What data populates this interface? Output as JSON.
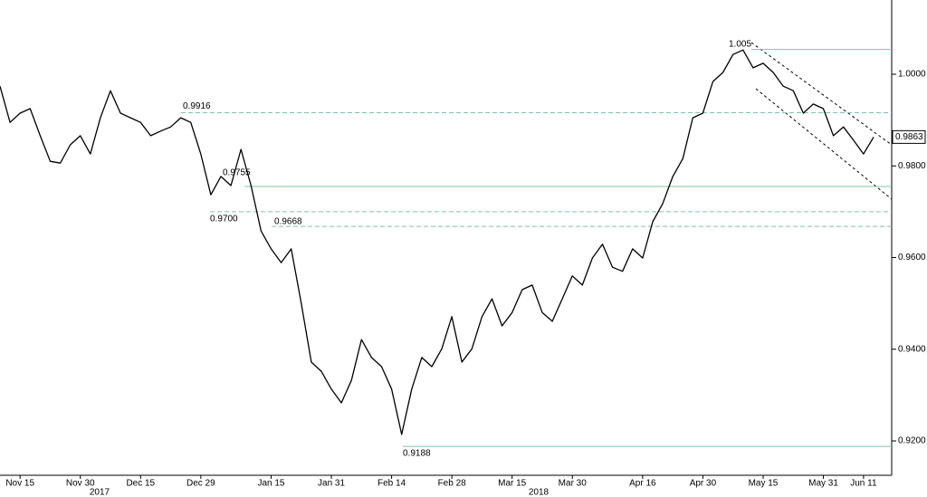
{
  "chart_data": {
    "type": "line",
    "categories": [
      null,
      null,
      "Nov 15",
      null,
      null,
      null,
      null,
      null,
      "Nov 30",
      null,
      null,
      null,
      null,
      null,
      "Dec 15",
      null,
      null,
      null,
      null,
      null,
      "Dec 29",
      null,
      null,
      null,
      null,
      null,
      null,
      "Jan 15",
      null,
      null,
      null,
      null,
      null,
      "Jan 31",
      null,
      null,
      null,
      null,
      null,
      "Feb 14",
      null,
      null,
      null,
      null,
      null,
      "Feb 28",
      null,
      null,
      null,
      null,
      null,
      "Mar 15",
      null,
      null,
      null,
      null,
      null,
      "Mar 30",
      null,
      null,
      null,
      null,
      null,
      null,
      "Apr 16",
      null,
      null,
      null,
      null,
      null,
      "Apr 30",
      null,
      null,
      null,
      null,
      null,
      "May 15",
      null,
      null,
      null,
      null,
      null,
      "May 31",
      null,
      null,
      null,
      "Jun 11",
      null
    ],
    "x_groups": [
      "2017",
      "2018"
    ],
    "series": [
      {
        "color": "#000000",
        "values": [
          0.9974,
          0.9895,
          0.9915,
          0.9925,
          0.9866,
          0.981,
          0.9806,
          0.9846,
          0.9866,
          0.9826,
          0.9905,
          0.9964,
          0.9915,
          0.9905,
          0.9895,
          0.9866,
          0.9876,
          0.9885,
          0.9905,
          0.9895,
          0.9826,
          0.9737,
          0.9777,
          0.9757,
          0.9836,
          0.9757,
          0.9658,
          0.9619,
          0.9589,
          0.9619,
          0.95,
          0.9372,
          0.9352,
          0.9313,
          0.9283,
          0.9332,
          0.9421,
          0.9382,
          0.9362,
          0.9313,
          0.9214,
          0.9313,
          0.9382,
          0.9362,
          0.9401,
          0.9471,
          0.9372,
          0.9401,
          0.9471,
          0.951,
          0.9451,
          0.948,
          0.953,
          0.954,
          0.948,
          0.9461,
          0.951,
          0.956,
          0.954,
          0.9599,
          0.9629,
          0.9579,
          0.957,
          0.9619,
          0.9599,
          0.9678,
          0.9718,
          0.9777,
          0.9816,
          0.9905,
          0.9915,
          0.9984,
          1.0004,
          1.0043,
          1.0053,
          1.0014,
          1.0024,
          1.0004,
          0.9974,
          0.9964,
          0.9915,
          0.9935,
          0.9925,
          0.9866,
          0.9885,
          0.9856,
          0.9826,
          0.9863
        ]
      }
    ],
    "ylim": [
      0.9125,
      1.0162
    ],
    "yticks": [
      {
        "value": 0.92,
        "label": "0.9200"
      },
      {
        "value": 0.94,
        "label": "0.9400"
      },
      {
        "value": 0.96,
        "label": "0.9600"
      },
      {
        "value": 0.98,
        "label": "0.9800"
      },
      {
        "value": 1.0,
        "label": "1.0000"
      }
    ],
    "levels": [
      {
        "value": 1.0054,
        "label": "1.005",
        "style": "solid"
      },
      {
        "value": 0.9916,
        "label": "0.9916",
        "style": "dashed"
      },
      {
        "value": 0.9755,
        "label": "0.9755",
        "style": "solid"
      },
      {
        "value": 0.97,
        "label": "0.9700",
        "style": "dashed"
      },
      {
        "value": 0.9668,
        "label": "0.9668",
        "style": "dashed"
      },
      {
        "value": 0.9188,
        "label": "0.9188",
        "style": "solid"
      }
    ],
    "level_color": "#7cc4a4"
  }
}
